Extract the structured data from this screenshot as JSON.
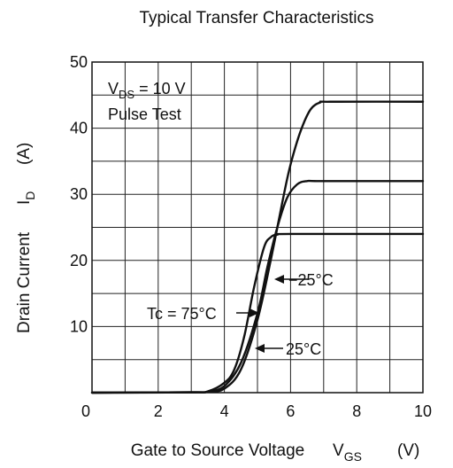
{
  "chart_data": {
    "type": "line",
    "title": "Typical Transfer Characteristics",
    "xlabel": "Gate to Source Voltage",
    "xlabel_symbol": "V",
    "xlabel_subscript": "GS",
    "xlabel_unit": "(V)",
    "ylabel": "Drain Current",
    "ylabel_symbol": "I",
    "ylabel_subscript": "D",
    "ylabel_unit": "(A)",
    "xlim": [
      0,
      10
    ],
    "ylim": [
      0,
      50
    ],
    "xticks": [
      0,
      2,
      4,
      6,
      8,
      10
    ],
    "yticks": [
      10,
      20,
      30,
      40,
      50
    ],
    "grid": true,
    "conditions": {
      "vds_symbol": "V",
      "vds_subscript": "DS",
      "vds_value": "= 10 V",
      "pulse": "Pulse Test"
    },
    "series": [
      {
        "name": "75°C",
        "x": [
          0,
          3.0,
          3.5,
          4.0,
          4.3,
          4.6,
          4.9,
          5.2,
          5.4,
          5.6,
          6.0,
          10.0
        ],
        "y": [
          0,
          0.05,
          0.2,
          1.5,
          3.5,
          8.5,
          16.0,
          22.0,
          23.5,
          23.9,
          24.0,
          24.0
        ]
      },
      {
        "name": "25°C",
        "x": [
          0,
          3.0,
          3.5,
          4.0,
          4.5,
          5.0,
          5.3,
          5.6,
          5.9,
          6.2,
          6.5,
          7.0,
          10.0
        ],
        "y": [
          0,
          0.05,
          0.15,
          1.0,
          4.5,
          12.0,
          19.0,
          25.0,
          29.5,
          31.5,
          32.0,
          32.0,
          32.0
        ]
      },
      {
        "name": "-25°C",
        "x": [
          0,
          3.0,
          3.5,
          4.0,
          4.5,
          5.0,
          5.4,
          5.8,
          6.0,
          6.3,
          6.6,
          6.9,
          7.2,
          10.0
        ],
        "y": [
          0,
          0.05,
          0.12,
          0.6,
          3.5,
          11.0,
          20.0,
          30.0,
          34.5,
          39.5,
          42.8,
          43.9,
          44.0,
          44.0
        ]
      }
    ],
    "annotations": [
      {
        "text": "−25°C",
        "series": "-25°C"
      },
      {
        "text": "Tc = 75°C",
        "series": "75°C"
      },
      {
        "text": "25°C",
        "series": "25°C"
      }
    ]
  }
}
